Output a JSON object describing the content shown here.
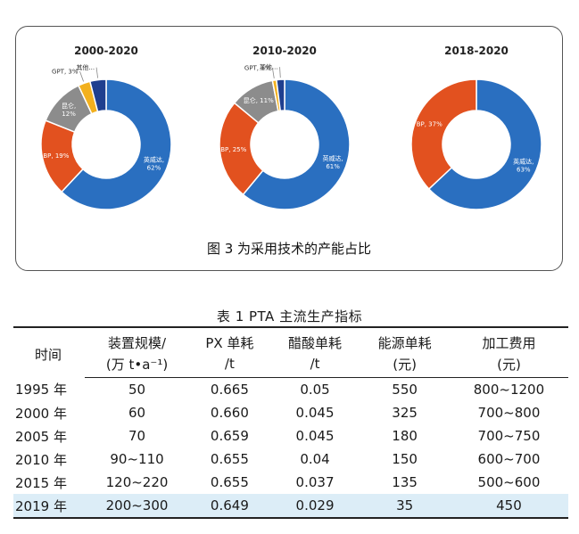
{
  "figure": {
    "caption": "图 3   为采用技术的产能占比",
    "colors": {
      "invista": "#2a6fc0",
      "bp": "#e2511f",
      "kunlun": "#8c8c8c",
      "gpt": "#f2b01e",
      "other": "#1f3f8f"
    }
  },
  "chart_data": [
    {
      "type": "pie",
      "title": "2000-2020",
      "slices": [
        {
          "label": "英威达",
          "value": 62,
          "text": "英威达,\n62%"
        },
        {
          "label": "BP",
          "value": 19,
          "text": "BP, 19%"
        },
        {
          "label": "昆仑",
          "value": 12,
          "text": "昆仑,\n12%"
        },
        {
          "label": "GPT",
          "value": 3,
          "text": "GPT, 3%"
        },
        {
          "label": "其他",
          "value": 4,
          "text": "其他..."
        }
      ]
    },
    {
      "type": "pie",
      "title": "2010-2020",
      "slices": [
        {
          "label": "英威达",
          "value": 61,
          "text": "英威达,\n61%"
        },
        {
          "label": "BP",
          "value": 25,
          "text": "BP, 25%"
        },
        {
          "label": "昆仑",
          "value": 11,
          "text": "昆仑, 11%"
        },
        {
          "label": "GPT",
          "value": 1,
          "text": "GPT, 1%"
        },
        {
          "label": "其他",
          "value": 2,
          "text": "其他..."
        }
      ]
    },
    {
      "type": "pie",
      "title": "2018-2020",
      "slices": [
        {
          "label": "英威达",
          "value": 63,
          "text": "英威达,\n63%"
        },
        {
          "label": "BP",
          "value": 37,
          "text": "BP, 37%"
        }
      ]
    }
  ],
  "table": {
    "title": "表 1   PTA 主流生产指标",
    "header_row1": [
      "时间",
      "装置规模/",
      "PX 单耗",
      "醋酸单耗",
      "能源单耗",
      "加工费用"
    ],
    "header_row2": [
      "(万 t•a⁻¹)",
      "/t",
      "/t",
      "(元)",
      "(元)"
    ],
    "rows": [
      [
        "1995 年",
        "50",
        "0.665",
        "0.05",
        "550",
        "800~1200"
      ],
      [
        "2000 年",
        "60",
        "0.660",
        "0.045",
        "325",
        "700~800"
      ],
      [
        "2005 年",
        "70",
        "0.659",
        "0.045",
        "180",
        "700~750"
      ],
      [
        "2010 年",
        "90~110",
        "0.655",
        "0.04",
        "150",
        "600~700"
      ],
      [
        "2015 年",
        "120~220",
        "0.655",
        "0.037",
        "135",
        "500~600"
      ],
      [
        "2019 年",
        "200~300",
        "0.649",
        "0.029",
        "35",
        "450"
      ]
    ]
  }
}
